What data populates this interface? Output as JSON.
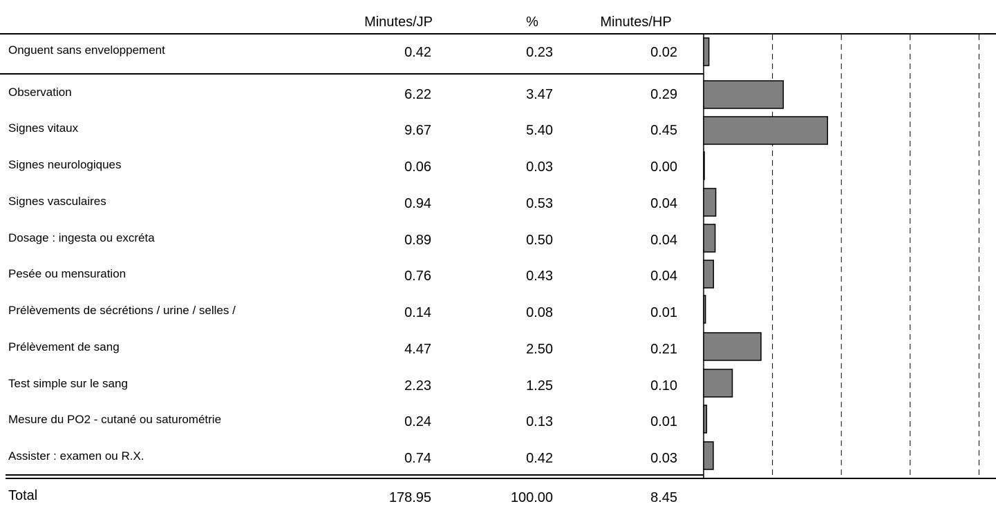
{
  "header": {
    "col_minutes_jp": "Minutes/JP",
    "col_percent": "%",
    "col_minutes_hp": "Minutes/HP"
  },
  "rows": [
    {
      "label": "Onguent sans enveloppement",
      "minutes_jp": "0.42",
      "percent": "0.23",
      "minutes_hp": "0.02"
    },
    {
      "label": "Observation",
      "minutes_jp": "6.22",
      "percent": "3.47",
      "minutes_hp": "0.29"
    },
    {
      "label": "Signes vitaux",
      "minutes_jp": "9.67",
      "percent": "5.40",
      "minutes_hp": "0.45"
    },
    {
      "label": "Signes neurologiques",
      "minutes_jp": "0.06",
      "percent": "0.03",
      "minutes_hp": "0.00"
    },
    {
      "label": "Signes vasculaires",
      "minutes_jp": "0.94",
      "percent": "0.53",
      "minutes_hp": "0.04"
    },
    {
      "label": "Dosage : ingesta ou excréta",
      "minutes_jp": "0.89",
      "percent": "0.50",
      "minutes_hp": "0.04"
    },
    {
      "label": "Pesée ou mensuration",
      "minutes_jp": "0.76",
      "percent": "0.43",
      "minutes_hp": "0.04"
    },
    {
      "label": "Prélèvements de sécrétions / urine / selles /",
      "minutes_jp": "0.14",
      "percent": "0.08",
      "minutes_hp": "0.01"
    },
    {
      "label": "Prélèvement de sang",
      "minutes_jp": "4.47",
      "percent": "2.50",
      "minutes_hp": "0.21"
    },
    {
      "label": "Test simple sur le sang",
      "minutes_jp": "2.23",
      "percent": "1.25",
      "minutes_hp": "0.10"
    },
    {
      "label": "Mesure du PO2 - cutané ou saturométrie",
      "minutes_jp": "0.24",
      "percent": "0.13",
      "minutes_hp": "0.01"
    },
    {
      "label": "Assister : examen ou R.X.",
      "minutes_jp": "0.74",
      "percent": "0.42",
      "minutes_hp": "0.03"
    }
  ],
  "total": {
    "label": "Total",
    "minutes_jp": "178.95",
    "percent": "100.00",
    "minutes_hp": "8.45"
  },
  "colors": {
    "bar_fill": "#808080",
    "bar_stroke": "#000000",
    "line": "#000000"
  },
  "chart_data": {
    "type": "bar",
    "orientation": "horizontal",
    "categories": [
      "Onguent sans enveloppement",
      "Observation",
      "Signes vitaux",
      "Signes neurologiques",
      "Signes vasculaires",
      "Dosage : ingesta ou excréta",
      "Pesée ou mensuration",
      "Prélèvements de sécrétions / urine / selles /",
      "Prélèvement de sang",
      "Test simple sur le sang",
      "Mesure du PO2 - cutané ou saturométrie",
      "Assister : examen ou R.X."
    ],
    "values": [
      0.23,
      3.47,
      5.4,
      0.03,
      0.53,
      0.5,
      0.43,
      0.08,
      2.5,
      1.25,
      0.13,
      0.42
    ],
    "xlim": [
      0,
      12.5
    ],
    "grid": "vertical-dashed",
    "gridlines": [
      3,
      6,
      9,
      12
    ]
  }
}
